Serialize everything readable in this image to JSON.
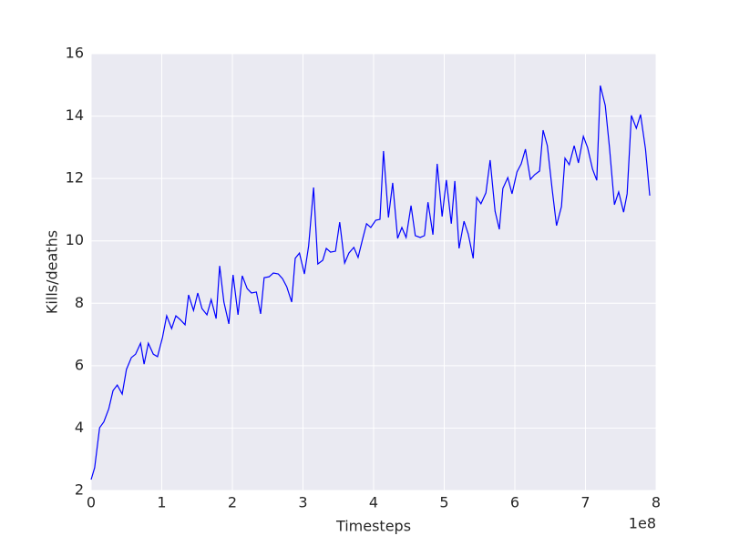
{
  "chart_data": {
    "type": "line",
    "x_label": "Timesteps",
    "y_label": "Kills/deaths",
    "x_offset_label": "1e8",
    "xlim": [
      0,
      8
    ],
    "ylim": [
      2,
      16
    ],
    "xticks": [
      0,
      1,
      2,
      3,
      4,
      5,
      6,
      7,
      8
    ],
    "yticks": [
      2,
      4,
      6,
      8,
      10,
      12,
      14,
      16
    ],
    "grid": true,
    "x": [
      0,
      0.05,
      0.12,
      0.18,
      0.25,
      0.31,
      0.37,
      0.44,
      0.5,
      0.57,
      0.63,
      0.7,
      0.75,
      0.81,
      0.88,
      0.94,
      1.01,
      1.07,
      1.14,
      1.2,
      1.26,
      1.33,
      1.38,
      1.45,
      1.51,
      1.57,
      1.64,
      1.7,
      1.77,
      1.82,
      1.88,
      1.95,
      2.01,
      2.08,
      2.14,
      2.21,
      2.27,
      2.34,
      2.4,
      2.45,
      2.52,
      2.58,
      2.65,
      2.71,
      2.77,
      2.84,
      2.89,
      2.95,
      3.02,
      3.08,
      3.15,
      3.21,
      3.28,
      3.33,
      3.39,
      3.46,
      3.52,
      3.59,
      3.65,
      3.72,
      3.78,
      3.85,
      3.9,
      3.96,
      4.03,
      4.09,
      4.14,
      4.21,
      4.27,
      4.34,
      4.4,
      4.46,
      4.53,
      4.59,
      4.66,
      4.72,
      4.77,
      4.84,
      4.9,
      4.97,
      5.03,
      5.1,
      5.15,
      5.21,
      5.28,
      5.34,
      5.41,
      5.46,
      5.52,
      5.59,
      5.65,
      5.72,
      5.78,
      5.83,
      5.9,
      5.96,
      6.03,
      6.09,
      6.15,
      6.22,
      6.28,
      6.35,
      6.4,
      6.46,
      6.53,
      6.59,
      6.66,
      6.71,
      6.77,
      6.84,
      6.9,
      6.97,
      7.03,
      7.1,
      7.16,
      7.21,
      7.28,
      7.34,
      7.41,
      7.47,
      7.54,
      7.59,
      7.65,
      7.72,
      7.78,
      7.85,
      7.91
    ],
    "series": [
      {
        "color": "#0000ff",
        "values": [
          2.35,
          2.73,
          4.01,
          4.2,
          4.62,
          5.2,
          5.38,
          5.09,
          5.88,
          6.26,
          6.37,
          6.72,
          6.05,
          6.72,
          6.37,
          6.29,
          6.9,
          7.6,
          7.19,
          7.6,
          7.48,
          7.31,
          8.27,
          7.77,
          8.33,
          7.83,
          7.63,
          8.12,
          7.51,
          9.2,
          8.04,
          7.34,
          8.91,
          7.63,
          8.88,
          8.47,
          8.33,
          8.36,
          7.66,
          8.82,
          8.85,
          8.97,
          8.94,
          8.79,
          8.53,
          8.04,
          9.44,
          9.61,
          8.94,
          9.84,
          11.71,
          9.26,
          9.38,
          9.76,
          9.64,
          9.67,
          10.6,
          9.29,
          9.61,
          9.79,
          9.47,
          10.11,
          10.55,
          10.43,
          10.66,
          10.69,
          12.88,
          10.75,
          11.86,
          10.08,
          10.43,
          10.11,
          11.13,
          10.17,
          10.11,
          10.17,
          11.24,
          10.2,
          12.47,
          10.78,
          11.95,
          10.55,
          11.92,
          9.76,
          10.63,
          10.22,
          9.44,
          11.39,
          11.19,
          11.54,
          12.59,
          10.95,
          10.37,
          11.68,
          12.03,
          11.51,
          12.21,
          12.47,
          12.94,
          11.97,
          12.12,
          12.24,
          13.55,
          13.05,
          11.62,
          10.49,
          11.1,
          12.65,
          12.44,
          13.05,
          12.5,
          13.35,
          12.99,
          12.3,
          11.94,
          14.98,
          14.34,
          12.99,
          11.16,
          11.57,
          10.92,
          11.51,
          14.02,
          13.61,
          14.05,
          12.94,
          11.45
        ]
      }
    ]
  }
}
